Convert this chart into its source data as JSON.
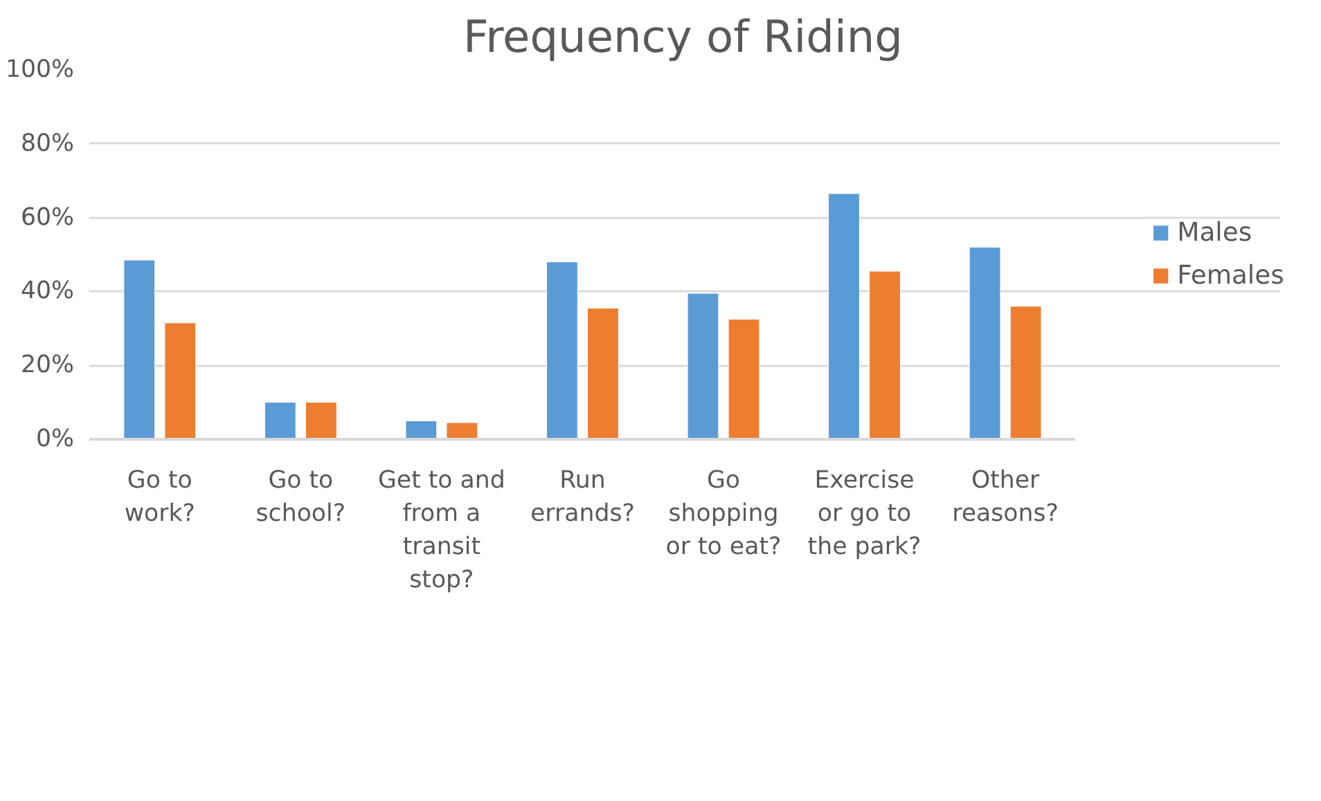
{
  "chart_data": {
    "type": "bar",
    "title": "Frequency of Riding",
    "categories": [
      "Go to work?",
      "Go to school?",
      "Get to and from a transit stop?",
      "Run errands?",
      "Go shopping or to eat?",
      "Exercise or go to the park?",
      "Other reasons?"
    ],
    "series": [
      {
        "name": "Males",
        "color": "#5b9bd5",
        "values": [
          48.5,
          10,
          5,
          48,
          39.5,
          66.5,
          52
        ]
      },
      {
        "name": "Females",
        "color": "#ed7d31",
        "values": [
          31.5,
          10,
          4.5,
          35.5,
          32.5,
          45.5,
          36
        ]
      }
    ],
    "ylim": [
      0,
      100
    ],
    "yticks": [
      {
        "value": 0,
        "label": "0%"
      },
      {
        "value": 20,
        "label": "20%"
      },
      {
        "value": 40,
        "label": "40%"
      },
      {
        "value": 60,
        "label": "60%"
      },
      {
        "value": 80,
        "label": "80%"
      },
      {
        "value": 100,
        "label": "100%"
      }
    ],
    "grid": "y",
    "legend": "right"
  }
}
